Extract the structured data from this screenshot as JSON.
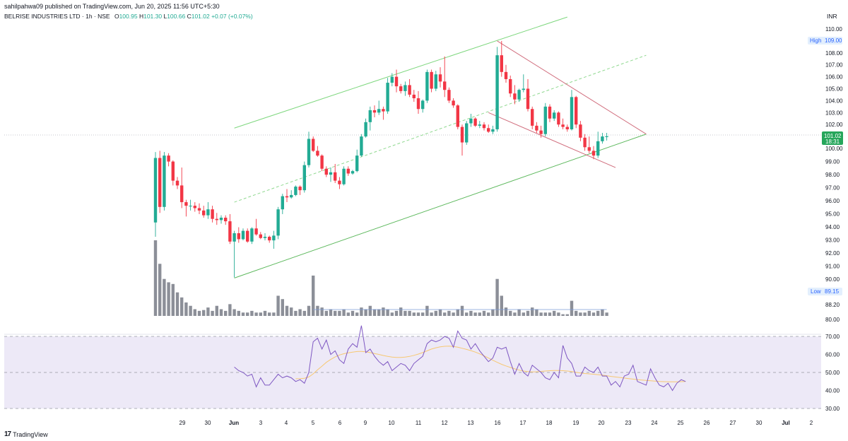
{
  "header": {
    "published": "sahilpahwa09 published on TradingView.com, Jun 20, 2025 11:56 UTC+5:30",
    "symbol": "BELRISE INDUSTRIES LTD · 1h · NSE",
    "o_label": "O",
    "o": "100.95",
    "h_label": "H",
    "h": "101.30",
    "l_label": "L",
    "l": "100.66",
    "c_label": "C",
    "c": "101.02",
    "change": "+0.07 (+0.07%)",
    "currency": "INR"
  },
  "footer": {
    "brand": "TradingView",
    "brand_icon": "tradingview-logo-icon"
  },
  "colors": {
    "up": "#22ab94",
    "down": "#f23645",
    "volume": "#787b86",
    "channel": "#4caf50",
    "channel_mid": "#81c784",
    "wedge": "#d06c7c",
    "rsi": "#7e57c2",
    "rsi_ma": "#f7c873",
    "rsi_band": "#ede9f7"
  },
  "chart_data": [
    {
      "type": "candlestick",
      "title": "BELRISE INDUSTRIES LTD · 1h · NSE",
      "y_axis": {
        "ticks": [
          80,
          88.2,
          89.15,
          90,
          91,
          92,
          93,
          94,
          95,
          96,
          97,
          98,
          99,
          100,
          101,
          102,
          103,
          104,
          105,
          106,
          107,
          108,
          109,
          110
        ],
        "tick_labels": [
          "80.00",
          "88.20",
          "89.15",
          "90.00",
          "91.00",
          "92.00",
          "93.00",
          "94.00",
          "95.00",
          "96.00",
          "97.00",
          "98.00",
          "99.00",
          "100.00",
          "101.00",
          "102.00",
          "103.00",
          "104.00",
          "105.00",
          "106.00",
          "107.00",
          "108.00",
          "109.00",
          "110.00"
        ],
        "shown_ticks": [
          "110.00",
          "108.00",
          "107.00",
          "106.00",
          "105.00",
          "104.00",
          "103.00",
          "102.00",
          "100.00",
          "99.00",
          "98.00",
          "97.00",
          "96.00",
          "95.00",
          "94.00",
          "93.00",
          "92.00",
          "91.00",
          "90.00",
          "88.20",
          "80.00"
        ]
      },
      "x_axis": {
        "tick_labels": [
          "29",
          "30",
          "Jun",
          "3",
          "4",
          "5",
          "6",
          "9",
          "10",
          "11",
          "12",
          "13",
          "16",
          "17",
          "18",
          "19",
          "20",
          "23",
          "24",
          "25",
          "26",
          "27",
          "30",
          "Jul",
          "2"
        ]
      },
      "markers": {
        "high_label": "High",
        "high": "109.00",
        "low_label": "Low",
        "low": "89.15",
        "last_price": "101.02",
        "countdown": "18:31"
      },
      "candles": [
        [
          93.8,
          99.7,
          92.6,
          99.2
        ],
        [
          99.2,
          99.8,
          94.6,
          95.1
        ],
        [
          95.1,
          99.7,
          94.8,
          99.4
        ],
        [
          99.4,
          99.6,
          98.5,
          98.9
        ],
        [
          98.9,
          99.0,
          96.9,
          97.3
        ],
        [
          97.3,
          97.6,
          96.6,
          96.9
        ],
        [
          96.9,
          98.4,
          95.0,
          95.5
        ],
        [
          95.5,
          95.7,
          94.3,
          95.2
        ],
        [
          95.2,
          95.7,
          94.8,
          95.2
        ],
        [
          95.2,
          95.5,
          94.7,
          95.0
        ],
        [
          95.0,
          95.4,
          94.5,
          94.8
        ],
        [
          94.8,
          95.2,
          94.2,
          94.4
        ],
        [
          94.4,
          95.5,
          94.1,
          94.9
        ],
        [
          94.9,
          95.2,
          93.8,
          94.1
        ],
        [
          94.1,
          94.6,
          93.6,
          94.0
        ],
        [
          94.0,
          94.4,
          93.7,
          94.2
        ],
        [
          94.2,
          94.4,
          93.6,
          93.9
        ],
        [
          93.9,
          94.5,
          92.0,
          92.2
        ],
        [
          92.2,
          93.1,
          89.2,
          92.9
        ],
        [
          92.9,
          93.4,
          92.1,
          92.4
        ],
        [
          92.4,
          93.3,
          92.3,
          93.1
        ],
        [
          93.1,
          93.3,
          92.1,
          92.2
        ],
        [
          92.2,
          93.4,
          92.0,
          93.3
        ],
        [
          93.3,
          94.1,
          92.7,
          92.8
        ],
        [
          92.8,
          93.0,
          92.4,
          92.5
        ],
        [
          92.5,
          92.9,
          92.3,
          92.6
        ],
        [
          92.6,
          92.7,
          92.1,
          92.3
        ],
        [
          92.3,
          93.1,
          91.6,
          92.7
        ],
        [
          92.7,
          95.1,
          92.4,
          94.9
        ],
        [
          94.9,
          96.2,
          94.5,
          96.0
        ],
        [
          96.0,
          96.6,
          95.5,
          95.9
        ],
        [
          95.9,
          96.5,
          95.8,
          96.1
        ],
        [
          96.1,
          96.9,
          96.0,
          96.8
        ],
        [
          96.8,
          96.9,
          96.1,
          96.5
        ],
        [
          96.5,
          98.9,
          96.3,
          98.6
        ],
        [
          98.6,
          101.4,
          98.4,
          100.8
        ],
        [
          100.8,
          101.0,
          99.7,
          99.8
        ],
        [
          99.8,
          100.2,
          99.3,
          99.4
        ],
        [
          99.4,
          99.5,
          98.1,
          98.3
        ],
        [
          98.3,
          98.5,
          97.6,
          97.8
        ],
        [
          97.8,
          98.4,
          97.2,
          98.0
        ],
        [
          98.0,
          98.7,
          97.1,
          97.3
        ],
        [
          97.3,
          97.6,
          96.6,
          97.0
        ],
        [
          97.0,
          98.5,
          96.9,
          98.3
        ],
        [
          98.3,
          98.5,
          97.7,
          97.9
        ],
        [
          97.9,
          98.2,
          97.8,
          98.1
        ],
        [
          98.1,
          99.9,
          98.0,
          99.4
        ],
        [
          99.4,
          101.2,
          99.3,
          101.0
        ],
        [
          101.0,
          102.5,
          100.9,
          102.2
        ],
        [
          102.2,
          103.5,
          101.5,
          103.2
        ],
        [
          103.2,
          103.6,
          102.6,
          103.0
        ],
        [
          103.0,
          104.0,
          102.8,
          103.3
        ],
        [
          103.3,
          103.5,
          102.4,
          103.1
        ],
        [
          103.1,
          105.9,
          102.9,
          105.5
        ],
        [
          105.5,
          106.3,
          105.2,
          106.0
        ],
        [
          106.0,
          106.6,
          104.7,
          105.2
        ],
        [
          105.2,
          105.4,
          104.6,
          104.8
        ],
        [
          104.8,
          105.6,
          104.4,
          105.3
        ],
        [
          105.3,
          105.8,
          104.3,
          104.5
        ],
        [
          104.5,
          104.9,
          103.9,
          104.2
        ],
        [
          104.2,
          104.8,
          102.9,
          103.3
        ],
        [
          103.3,
          104.1,
          103.0,
          104.0
        ],
        [
          104.0,
          106.6,
          103.8,
          106.4
        ],
        [
          106.4,
          106.6,
          104.7,
          105.0
        ],
        [
          105.0,
          106.5,
          104.8,
          106.2
        ],
        [
          106.2,
          106.8,
          105.1,
          105.6
        ],
        [
          105.6,
          107.7,
          104.3,
          104.9
        ],
        [
          104.9,
          105.1,
          103.8,
          104.0
        ],
        [
          104.0,
          104.2,
          103.4,
          103.6
        ],
        [
          103.6,
          103.7,
          101.6,
          101.8
        ],
        [
          101.8,
          102.0,
          99.4,
          100.5
        ],
        [
          100.5,
          102.3,
          100.3,
          102.1
        ],
        [
          102.1,
          102.9,
          101.8,
          102.5
        ],
        [
          102.5,
          102.6,
          101.8,
          101.9
        ],
        [
          101.9,
          102.3,
          101.7,
          102.0
        ],
        [
          102.0,
          102.2,
          101.5,
          101.7
        ],
        [
          101.7,
          102.0,
          101.3,
          101.4
        ],
        [
          101.4,
          101.9,
          101.2,
          101.6
        ],
        [
          101.6,
          108.5,
          101.4,
          107.8
        ],
        [
          107.8,
          109.0,
          106.0,
          106.4
        ],
        [
          106.4,
          107.0,
          105.5,
          105.8
        ],
        [
          105.8,
          106.1,
          104.3,
          104.6
        ],
        [
          104.6,
          105.3,
          103.7,
          104.1
        ],
        [
          104.1,
          105.0,
          103.9,
          104.9
        ],
        [
          104.9,
          106.2,
          104.7,
          105.0
        ],
        [
          105.0,
          105.8,
          103.1,
          103.3
        ],
        [
          103.3,
          103.5,
          101.6,
          101.9
        ],
        [
          101.9,
          102.2,
          101.3,
          101.5
        ],
        [
          101.5,
          101.9,
          100.9,
          101.2
        ],
        [
          101.2,
          103.8,
          101.0,
          103.5
        ],
        [
          103.5,
          103.7,
          102.2,
          102.5
        ],
        [
          102.5,
          103.2,
          102.3,
          103.0
        ],
        [
          103.0,
          103.1,
          101.8,
          102.0
        ],
        [
          102.0,
          102.5,
          101.6,
          101.8
        ],
        [
          101.8,
          102.0,
          101.4,
          101.6
        ],
        [
          101.6,
          104.9,
          101.5,
          104.3
        ],
        [
          104.3,
          104.4,
          101.7,
          102.0
        ],
        [
          102.0,
          102.3,
          100.6,
          100.9
        ],
        [
          100.9,
          101.2,
          99.8,
          100.1
        ],
        [
          100.1,
          101.0,
          99.6,
          99.8
        ],
        [
          99.8,
          100.2,
          99.1,
          99.4
        ],
        [
          99.4,
          101.4,
          99.2,
          100.6
        ],
        [
          100.6,
          101.3,
          100.4,
          101.0
        ],
        [
          100.95,
          101.3,
          100.66,
          101.02
        ]
      ],
      "volume": [
        4.5,
        3.1,
        2.2,
        2.0,
        1.9,
        1.4,
        1.1,
        0.8,
        0.6,
        0.4,
        0.3,
        0.35,
        0.5,
        0.3,
        0.6,
        0.4,
        0.3,
        0.7,
        0.4,
        0.3,
        0.2,
        0.2,
        0.3,
        0.2,
        0.2,
        0.3,
        0.2,
        0.2,
        1.2,
        1.0,
        0.6,
        0.5,
        0.3,
        0.4,
        0.3,
        0.6,
        2.4,
        0.6,
        0.5,
        0.3,
        0.4,
        0.3,
        0.3,
        0.4,
        0.2,
        0.3,
        0.2,
        0.5,
        0.4,
        0.6,
        0.4,
        0.4,
        0.5,
        0.4,
        0.2,
        0.3,
        0.5,
        0.3,
        0.3,
        0.2,
        0.2,
        0.2,
        0.6,
        0.2,
        0.3,
        0.4,
        0.2,
        0.3,
        0.2,
        0.4,
        0.6,
        0.2,
        0.3,
        0.2,
        0.2,
        0.3,
        0.2,
        0.4,
        2.2,
        1.2,
        0.5,
        0.3,
        0.2,
        0.4,
        0.2,
        0.3,
        0.5,
        0.4,
        0.2,
        0.2,
        0.2,
        0.3,
        0.2,
        0.1,
        0.1,
        0.9,
        0.3,
        0.2,
        0.2,
        0.3,
        0.2,
        0.3,
        0.4,
        0.2
      ],
      "channel_upper": {
        "from_bar": 18,
        "from": 101.7,
        "to_bar": 94,
        "to": 111.0
      },
      "channel_mid": {
        "from_bar": 18,
        "from": 95.5,
        "to_bar": 112,
        "to": 107.8
      },
      "channel_lower": {
        "from_bar": 18,
        "from": 89.15,
        "to_bar": 112,
        "to": 101.2
      },
      "wedge_upper": {
        "from_bar": 78,
        "from": 109.0,
        "to_bar": 112,
        "to": 101.2
      },
      "wedge_lower": {
        "from_bar": 76,
        "from": 103.0,
        "to_bar": 105,
        "to": 98.4
      }
    },
    {
      "type": "line",
      "title": "RSI",
      "y_axis": {
        "ticks": [
          30,
          40,
          50,
          60,
          70
        ],
        "tick_labels": [
          "30.00",
          "40.00",
          "50.00",
          "60.00",
          "70.00"
        ],
        "band": [
          30,
          70
        ],
        "mid": 50
      },
      "rsi": [
        53,
        51,
        50,
        48,
        49,
        42,
        47,
        43,
        43,
        46,
        49,
        47,
        48,
        47,
        45,
        46,
        44,
        50,
        67,
        69,
        63,
        68,
        60,
        62,
        57,
        55,
        63,
        66,
        64,
        76,
        61,
        63,
        59,
        56,
        54,
        56,
        51,
        53,
        55,
        54,
        51,
        55,
        57,
        59,
        66,
        68,
        67,
        68,
        70,
        69,
        64,
        73,
        69,
        68,
        63,
        66,
        62,
        59,
        56,
        58,
        64,
        63,
        64,
        56,
        49,
        55,
        50,
        48,
        54,
        52,
        50,
        47,
        46,
        50,
        47,
        65,
        58,
        55,
        48,
        48,
        53,
        51,
        50,
        53,
        48,
        48,
        43,
        45,
        42,
        48,
        49,
        54,
        45,
        44,
        43,
        52,
        47,
        43,
        42,
        44,
        40,
        44,
        46,
        45
      ],
      "rsi_ma": [
        null,
        null,
        null,
        null,
        null,
        null,
        null,
        null,
        null,
        null,
        null,
        null,
        null,
        null,
        46.5,
        46.6,
        46.8,
        47.5,
        49.2,
        51.5,
        53.5,
        55.6,
        57.2,
        58.6,
        59.7,
        60.4,
        60.9,
        61.3,
        61.6,
        61.7,
        61.4,
        61.0,
        60.5,
        60.0,
        59.4,
        58.9,
        58.5,
        58.3,
        58.3,
        58.5,
        58.9,
        59.5,
        60.2,
        61.0,
        62.0,
        63.0,
        63.7,
        64.2,
        64.5,
        64.6,
        64.4,
        64.0,
        63.4,
        62.8,
        62.1,
        61.3,
        60.3,
        59.2,
        58.0,
        56.8,
        55.6,
        54.5,
        53.6,
        52.8,
        52.0,
        51.3,
        50.8,
        50.5,
        50.3,
        50.4,
        50.6,
        50.8,
        51.0,
        51.1,
        51.1,
        51.0,
        50.8,
        50.5,
        50.1,
        49.7,
        49.4,
        49.2,
        49.0,
        48.8,
        48.5,
        48.2,
        47.8,
        47.5,
        47.2,
        46.9,
        46.6,
        46.3,
        46.0,
        45.8,
        45.6,
        45.4,
        45.2,
        45.0,
        44.9,
        44.8,
        44.8,
        44.8,
        44.9,
        45.0
      ]
    }
  ]
}
